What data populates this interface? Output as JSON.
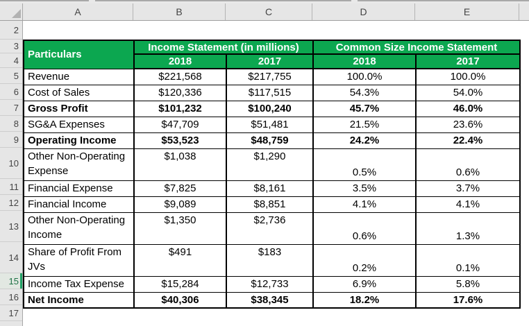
{
  "colors": {
    "header_green": "#0CA750",
    "header_text": "#ffffff",
    "grid_header_bg": "#e6e6e6",
    "active_row_green": "#1e7145",
    "table_border": "#000000"
  },
  "grid": {
    "column_letters": [
      "A",
      "B",
      "C",
      "D",
      "E"
    ],
    "row_numbers": [
      "2",
      "3",
      "4",
      "5",
      "6",
      "7",
      "8",
      "9",
      "10",
      "11",
      "12",
      "13",
      "14",
      "15",
      "16",
      "17"
    ],
    "active_row": "15"
  },
  "table": {
    "corner_header": "Particulars",
    "group_headers": [
      {
        "label": "Income Statement (in millions)"
      },
      {
        "label": "Common Size Income Statement"
      }
    ],
    "year_headers": [
      "2018",
      "2017",
      "2018",
      "2017"
    ],
    "rows": [
      {
        "label": "Revenue",
        "usd_2018": "$221,568",
        "usd_2017": "$217,755",
        "pct_2018": "100.0%",
        "pct_2017": "100.0%",
        "bold": false,
        "tall": false
      },
      {
        "label": "Cost of Sales",
        "usd_2018": "$120,336",
        "usd_2017": "$117,515",
        "pct_2018": "54.3%",
        "pct_2017": "54.0%",
        "bold": false,
        "tall": false
      },
      {
        "label": "Gross Profit",
        "usd_2018": "$101,232",
        "usd_2017": "$100,240",
        "pct_2018": "45.7%",
        "pct_2017": "46.0%",
        "bold": true,
        "tall": false
      },
      {
        "label": "SG&A Expenses",
        "usd_2018": "$47,709",
        "usd_2017": "$51,481",
        "pct_2018": "21.5%",
        "pct_2017": "23.6%",
        "bold": false,
        "tall": false
      },
      {
        "label": "Operating Income",
        "usd_2018": "$53,523",
        "usd_2017": "$48,759",
        "pct_2018": "24.2%",
        "pct_2017": "22.4%",
        "bold": true,
        "tall": false
      },
      {
        "label": "Other Non-Operating Expense",
        "usd_2018": "$1,038",
        "usd_2017": "$1,290",
        "pct_2018": "0.5%",
        "pct_2017": "0.6%",
        "bold": false,
        "tall": true
      },
      {
        "label": "Financial Expense",
        "usd_2018": "$7,825",
        "usd_2017": "$8,161",
        "pct_2018": "3.5%",
        "pct_2017": "3.7%",
        "bold": false,
        "tall": false
      },
      {
        "label": "Financial Income",
        "usd_2018": "$9,089",
        "usd_2017": "$8,851",
        "pct_2018": "4.1%",
        "pct_2017": "4.1%",
        "bold": false,
        "tall": false
      },
      {
        "label": "Other Non-Operating Income",
        "usd_2018": "$1,350",
        "usd_2017": "$2,736",
        "pct_2018": "0.6%",
        "pct_2017": "1.3%",
        "bold": false,
        "tall": true
      },
      {
        "label": "Share of Profit From JVs",
        "usd_2018": "$491",
        "usd_2017": "$183",
        "pct_2018": "0.2%",
        "pct_2017": "0.1%",
        "bold": false,
        "tall": true
      },
      {
        "label": "Income Tax Expense",
        "usd_2018": "$15,284",
        "usd_2017": "$12,733",
        "pct_2018": "6.9%",
        "pct_2017": "5.8%",
        "bold": false,
        "tall": false
      },
      {
        "label": "Net Income",
        "usd_2018": "$40,306",
        "usd_2017": "$38,345",
        "pct_2018": "18.2%",
        "pct_2017": "17.6%",
        "bold": true,
        "tall": false
      }
    ]
  }
}
